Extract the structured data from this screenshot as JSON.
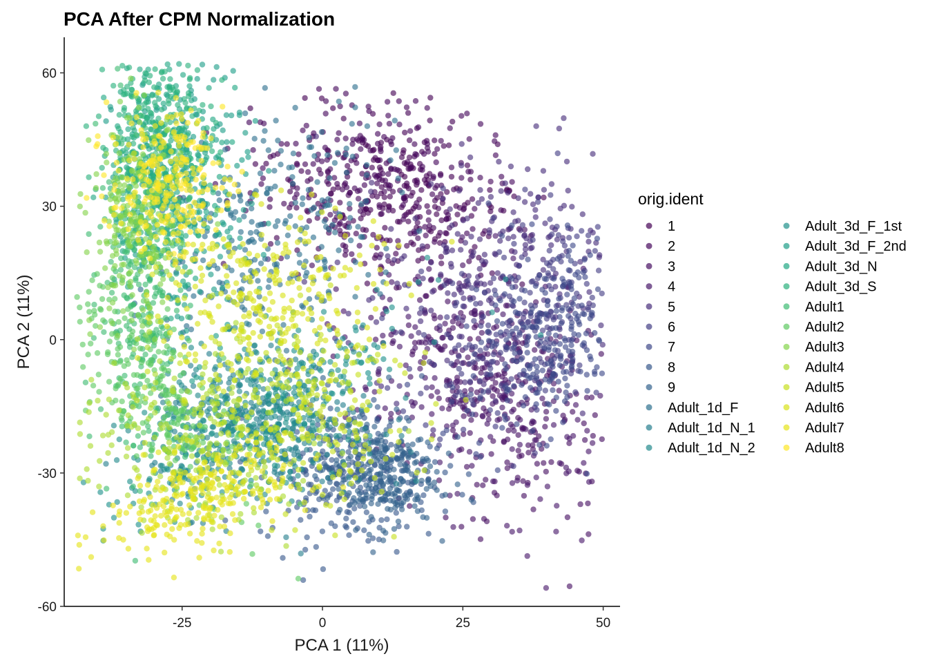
{
  "chart_data": {
    "type": "scatter",
    "title": "PCA After CPM Normalization",
    "xlabel": "PCA 1 (11%)",
    "ylabel": "PCA 2 (11%)",
    "xlim": [
      -46,
      53
    ],
    "ylim": [
      -60,
      68
    ],
    "xticks": [
      {
        "value": -25,
        "label": "-25"
      },
      {
        "value": 0,
        "label": "0"
      },
      {
        "value": 25,
        "label": "25"
      },
      {
        "value": 50,
        "label": "50"
      }
    ],
    "yticks": [
      {
        "value": -60,
        "label": "-60"
      },
      {
        "value": -30,
        "label": "-30"
      },
      {
        "value": 0,
        "label": "0"
      },
      {
        "value": 30,
        "label": "30"
      },
      {
        "value": 60,
        "label": "60"
      }
    ],
    "grid": false,
    "legend": {
      "title": "orig.ident",
      "placement": "right"
    },
    "series": [
      {
        "name": "1",
        "color": "#440154",
        "center": [
          12,
          32
        ],
        "spread": [
          11,
          9
        ],
        "tilt": -35
      },
      {
        "name": "2",
        "color": "#46085c",
        "center": [
          10,
          35
        ],
        "spread": [
          12,
          9
        ],
        "tilt": -35
      },
      {
        "name": "3",
        "color": "#471063",
        "center": [
          30,
          -12
        ],
        "spread": [
          9,
          16
        ],
        "tilt": 20
      },
      {
        "name": "4",
        "color": "#48186a",
        "center": [
          28,
          -10
        ],
        "spread": [
          10,
          15
        ],
        "tilt": 20
      },
      {
        "name": "5",
        "color": "#472d7b",
        "center": [
          32,
          15
        ],
        "spread": [
          12,
          14
        ],
        "tilt": -40
      },
      {
        "name": "6",
        "color": "#433e85",
        "center": [
          36,
          5
        ],
        "spread": [
          9,
          14
        ],
        "tilt": -30
      },
      {
        "name": "7",
        "color": "#3e4989",
        "center": [
          40,
          0
        ],
        "spread": [
          6,
          12
        ],
        "tilt": -20
      },
      {
        "name": "8",
        "color": "#38588c",
        "center": [
          5,
          -30
        ],
        "spread": [
          8,
          8
        ],
        "tilt": 0
      },
      {
        "name": "9",
        "color": "#33638d",
        "center": [
          10,
          -30
        ],
        "spread": [
          5,
          6
        ],
        "tilt": 0
      },
      {
        "name": "Adult_1d_F",
        "color": "#2d708e",
        "center": [
          -8,
          25
        ],
        "spread": [
          9,
          14
        ],
        "tilt": -30
      },
      {
        "name": "Adult_1d_N_1",
        "color": "#277f8e",
        "center": [
          -10,
          -20
        ],
        "spread": [
          10,
          9
        ],
        "tilt": 0
      },
      {
        "name": "Adult_1d_N_2",
        "color": "#238a8d",
        "center": [
          -12,
          -18
        ],
        "spread": [
          9,
          8
        ],
        "tilt": 0
      },
      {
        "name": "Adult_3d_F_1st",
        "color": "#21918c",
        "center": [
          -12,
          -18
        ],
        "spread": [
          20,
          6
        ],
        "tilt": 40
      },
      {
        "name": "Adult_3d_F_2nd",
        "color": "#1f9e89",
        "center": [
          -25,
          30
        ],
        "spread": [
          6,
          16
        ],
        "tilt": 0
      },
      {
        "name": "Adult_3d_N",
        "color": "#22a884",
        "center": [
          -28,
          40
        ],
        "spread": [
          5,
          12
        ],
        "tilt": 0
      },
      {
        "name": "Adult_3d_S",
        "color": "#2cb17e",
        "center": [
          -30,
          45
        ],
        "spread": [
          5,
          10
        ],
        "tilt": 0
      },
      {
        "name": "Adult1",
        "color": "#3fbc73",
        "center": [
          -32,
          10
        ],
        "spread": [
          4,
          18
        ],
        "tilt": 0
      },
      {
        "name": "Adult2",
        "color": "#5ec962",
        "center": [
          -30,
          -10
        ],
        "spread": [
          5,
          15
        ],
        "tilt": 30
      },
      {
        "name": "Adult3",
        "color": "#84d44b",
        "center": [
          -33,
          25
        ],
        "spread": [
          4,
          12
        ],
        "tilt": 0
      },
      {
        "name": "Adult4",
        "color": "#addc30",
        "center": [
          -20,
          -20
        ],
        "spread": [
          12,
          10
        ],
        "tilt": 35
      },
      {
        "name": "Adult5",
        "color": "#c8e020",
        "center": [
          -5,
          -15
        ],
        "spread": [
          10,
          12
        ],
        "tilt": 30
      },
      {
        "name": "Adult6",
        "color": "#d8e219",
        "center": [
          -10,
          10
        ],
        "spread": [
          10,
          10
        ],
        "tilt": 0
      },
      {
        "name": "Adult7",
        "color": "#e5e419",
        "center": [
          -22,
          -35
        ],
        "spread": [
          10,
          5
        ],
        "tilt": 30
      },
      {
        "name": "Adult8",
        "color": "#fde725",
        "center": [
          -28,
          35
        ],
        "spread": [
          5,
          8
        ],
        "tilt": 0
      }
    ]
  }
}
